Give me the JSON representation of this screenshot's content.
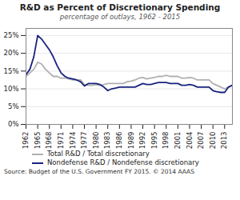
{
  "chart_data": {
    "type": "line",
    "title": "R&D as Percent of Discretionary Spending",
    "subtitle": "percentage of outlays, 1962 - 2015",
    "source": "Source: Budget of the U.S. Government FY 2015. © 2014 AAAS",
    "x": [
      1962,
      1963,
      1964,
      1965,
      1966,
      1967,
      1968,
      1969,
      1970,
      1971,
      1972,
      1973,
      1974,
      1975,
      1976,
      1977,
      1978,
      1979,
      1980,
      1981,
      1982,
      1983,
      1984,
      1985,
      1986,
      1987,
      1988,
      1989,
      1990,
      1991,
      1992,
      1993,
      1994,
      1995,
      1996,
      1997,
      1998,
      1999,
      2000,
      2001,
      2002,
      2003,
      2004,
      2005,
      2006,
      2007,
      2008,
      2009,
      2010,
      2011,
      2012,
      2013,
      2014,
      2015
    ],
    "xlim": [
      1962,
      2015
    ],
    "xticks": [
      1962,
      1965,
      1968,
      1971,
      1974,
      1977,
      1980,
      1983,
      1986,
      1989,
      1992,
      1995,
      1998,
      2001,
      2004,
      2007,
      2010,
      2013
    ],
    "ylim": [
      0,
      27
    ],
    "yticks": [
      {
        "value": 0,
        "label": "0%"
      },
      {
        "value": 5,
        "label": "5%"
      },
      {
        "value": 10,
        "label": "10%"
      },
      {
        "value": 15,
        "label": "15%"
      },
      {
        "value": 20,
        "label": "20%"
      },
      {
        "value": 25,
        "label": "25%"
      }
    ],
    "grid": true,
    "legend": "bottom",
    "series": [
      {
        "name": "Total R&D / Total discretionary",
        "color": "#b0b0b0",
        "values": [
          13.5,
          14.5,
          15.5,
          17.5,
          17.0,
          15.5,
          14.5,
          13.5,
          13.5,
          13.0,
          13.0,
          12.8,
          12.5,
          12.5,
          12.5,
          11.2,
          11.0,
          11.0,
          11.2,
          11.0,
          11.2,
          11.5,
          11.5,
          11.5,
          11.5,
          11.5,
          12.0,
          12.2,
          12.5,
          13.0,
          13.2,
          12.8,
          13.0,
          13.2,
          13.5,
          13.5,
          13.8,
          13.5,
          13.5,
          13.5,
          13.0,
          13.0,
          13.2,
          13.0,
          12.5,
          12.5,
          12.5,
          12.5,
          11.5,
          11.0,
          10.5,
          10.0,
          10.5,
          11.0
        ]
      },
      {
        "name": "Nondefense R&D / Nondefense discretionary",
        "color": "#1a237e",
        "values": [
          14.0,
          15.5,
          19.0,
          25.0,
          24.0,
          22.5,
          21.0,
          19.0,
          16.5,
          14.5,
          13.5,
          13.0,
          12.8,
          12.5,
          12.0,
          10.8,
          11.5,
          11.5,
          11.5,
          11.2,
          10.5,
          9.5,
          10.0,
          10.2,
          10.5,
          10.5,
          10.5,
          10.5,
          10.5,
          11.0,
          11.5,
          11.2,
          11.2,
          11.5,
          11.8,
          11.8,
          11.8,
          11.5,
          11.5,
          11.5,
          11.0,
          11.0,
          11.2,
          11.0,
          10.5,
          10.5,
          10.5,
          10.5,
          9.5,
          9.2,
          9.0,
          9.0,
          10.5,
          11.0
        ]
      }
    ]
  }
}
